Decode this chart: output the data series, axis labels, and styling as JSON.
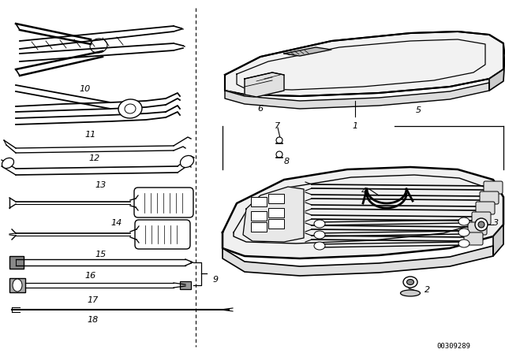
{
  "bg_color": "#ffffff",
  "line_color": "#000000",
  "text_color": "#000000",
  "diagram_code": "00309289"
}
